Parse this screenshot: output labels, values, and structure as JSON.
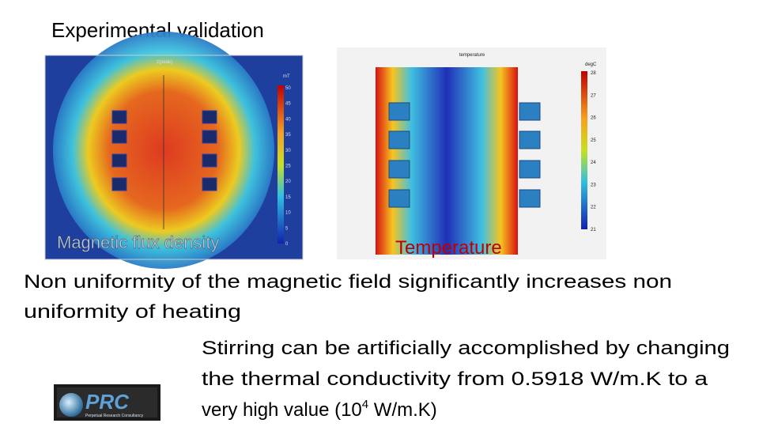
{
  "title": "Experimental validation",
  "figures": [
    {
      "caption": "Magnetic flux density",
      "image": {
        "title": "z(peak)",
        "unit": "mT",
        "colorbar_labels": [
          "50",
          "45",
          "40",
          "35",
          "30",
          "25",
          "20",
          "15",
          "10",
          "5",
          "0"
        ]
      }
    },
    {
      "caption": "Temperature",
      "image": {
        "title": "temperature",
        "unit": "degC",
        "colorbar_labels": [
          "28",
          "27",
          "26",
          "25",
          "24",
          "23",
          "22",
          "21"
        ]
      }
    }
  ],
  "paragraph": {
    "lines": [
      "Non uniformity of the magnetic field significantly increases non",
      "uniformity of heating"
    ]
  },
  "note": {
    "lines": [
      "Stirring can be artificially accomplished by changing",
      "the thermal conductivity from 0.5918 W/m.K to a"
    ],
    "last_line": {
      "before": "very high value (10",
      "superscript": "4",
      "after": " W/m.K)"
    }
  },
  "logo": {
    "name": "PRC",
    "tagline": "Perpetual Research Consultancy"
  }
}
